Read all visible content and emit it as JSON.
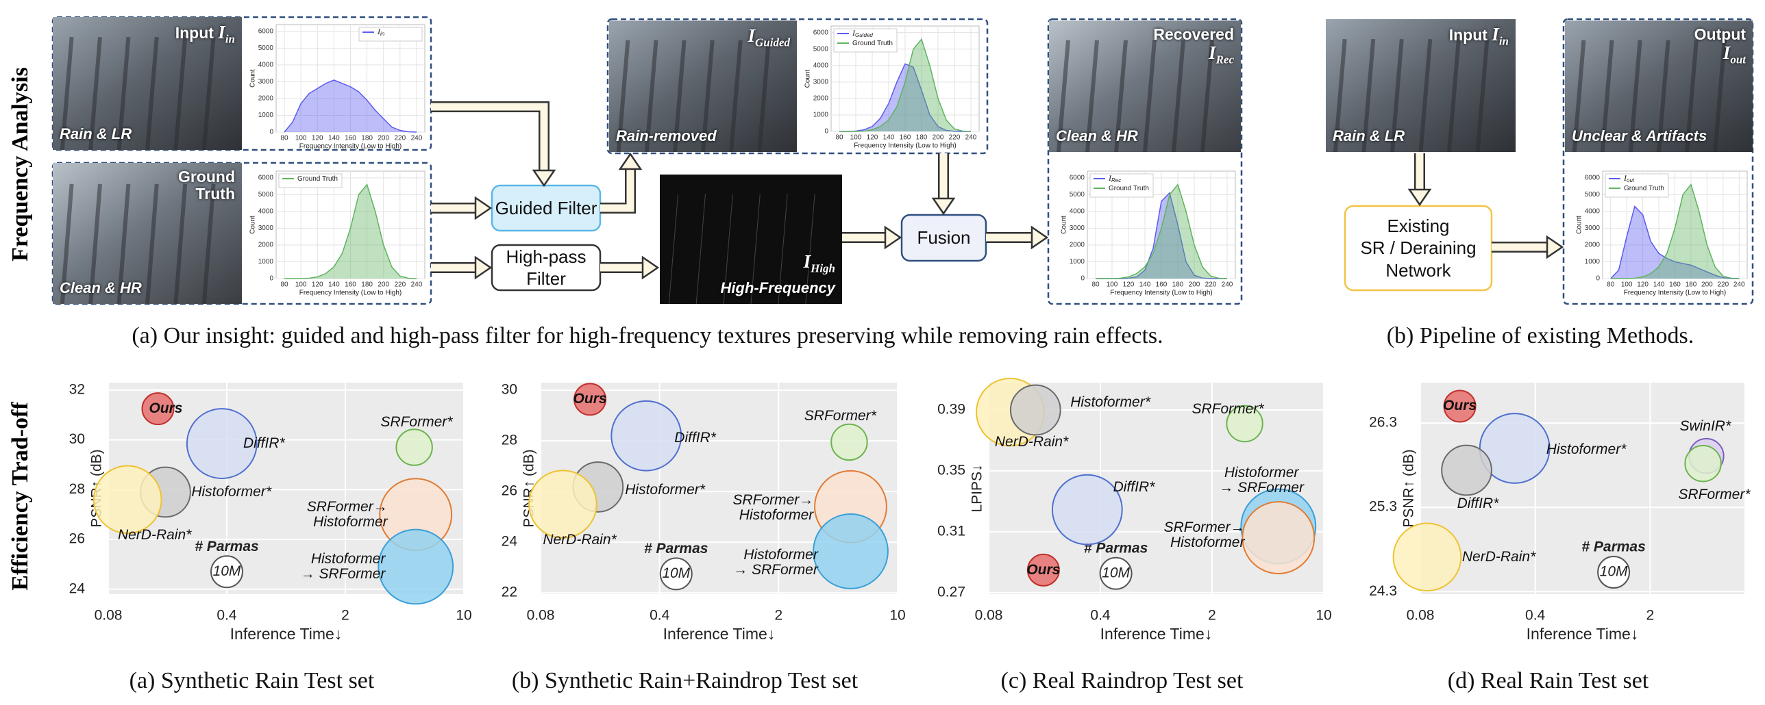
{
  "diagram": {
    "side_labels": [
      "Frequency Analysis",
      "Efficiency Trad-off"
    ],
    "photos": [
      {
        "title": "Input",
        "symbol": "I",
        "sub": "in",
        "tag": "Rain & LR"
      },
      {
        "title": "Ground\nTruth",
        "tag": "Clean & HR"
      },
      {
        "symbol": "I",
        "sub": "Guided",
        "tag": "Rain-removed"
      },
      {
        "symbol": "I",
        "sub": "High",
        "tag": "High-Frequency"
      },
      {
        "title": "Recovered",
        "symbol": "I",
        "sub": "Rec",
        "tag": "Clean & HR"
      },
      {
        "title": "Input",
        "symbol": "I",
        "sub": "in",
        "tag": "Rain & LR"
      },
      {
        "title": "Output",
        "symbol": "I",
        "sub": "out",
        "tag": "Unclear & Artifacts"
      }
    ],
    "boxes": [
      "Guided Filter",
      "High-pass\nFilter",
      "Fusion",
      "Existing\nSR / Deraining\nNetwork"
    ],
    "captions": [
      "(a) Our insight: guided and high-pass filter for high-frequency textures preserving while removing rain effects.",
      "(b) Pipeline of existing Methods."
    ]
  },
  "chart_data": [
    {
      "type": "area",
      "xlabel": "Frequency Intensity (Low to High)",
      "ylabel": "Count",
      "legend": "upper right",
      "x": [
        80,
        90,
        100,
        110,
        120,
        130,
        140,
        150,
        160,
        170,
        180,
        190,
        200,
        210,
        220,
        230,
        240
      ],
      "xlim": [
        70,
        250
      ],
      "xticks": [
        80,
        100,
        120,
        140,
        160,
        180,
        200,
        220,
        240
      ],
      "ylim": [
        0,
        6400
      ],
      "yticks": [
        0,
        1000,
        2000,
        3000,
        4000,
        5000,
        6000
      ],
      "series": [
        {
          "name": "I",
          "name_sub": "in",
          "color": "#5b5bef",
          "values": [
            0,
            600,
            1700,
            2300,
            2600,
            2900,
            3100,
            2900,
            2700,
            2400,
            1900,
            1300,
            800,
            300,
            100,
            20,
            0
          ]
        }
      ]
    },
    {
      "type": "area",
      "xlabel": "Frequency Intensity (Low to High)",
      "ylabel": "Count",
      "legend": "upper left",
      "x": [
        80,
        90,
        100,
        110,
        120,
        130,
        140,
        150,
        160,
        170,
        180,
        190,
        200,
        210,
        220,
        230,
        240
      ],
      "xlim": [
        70,
        250
      ],
      "xticks": [
        80,
        100,
        120,
        140,
        160,
        180,
        200,
        220,
        240
      ],
      "ylim": [
        0,
        6400
      ],
      "yticks": [
        0,
        1000,
        2000,
        3000,
        4000,
        5000,
        6000
      ],
      "series": [
        {
          "name": "Ground Truth",
          "color": "#5fb35f",
          "values": [
            0,
            0,
            0,
            20,
            100,
            300,
            700,
            1500,
            3000,
            5000,
            5600,
            4000,
            2000,
            700,
            150,
            20,
            0
          ]
        }
      ]
    },
    {
      "type": "area",
      "xlabel": "Frequency Intensity (Low to High)",
      "ylabel": "Count",
      "legend": "upper left",
      "x": [
        80,
        90,
        100,
        110,
        120,
        130,
        140,
        150,
        160,
        170,
        180,
        190,
        200,
        210,
        220,
        230,
        240
      ],
      "xlim": [
        70,
        250
      ],
      "xticks": [
        80,
        100,
        120,
        140,
        160,
        180,
        200,
        220,
        240
      ],
      "ylim": [
        0,
        6400
      ],
      "yticks": [
        0,
        1000,
        2000,
        3000,
        4000,
        5000,
        6000
      ],
      "series": [
        {
          "name": "I",
          "name_sub": "Guided",
          "color": "#5b5bef",
          "values": [
            0,
            0,
            20,
            100,
            300,
            800,
            1700,
            3000,
            4100,
            3900,
            2500,
            1000,
            300,
            60,
            10,
            0,
            0
          ]
        },
        {
          "name": "Ground Truth",
          "color": "#5fb35f",
          "values": [
            0,
            0,
            0,
            20,
            100,
            300,
            700,
            1500,
            3000,
            5000,
            5600,
            4000,
            2000,
            700,
            150,
            20,
            0
          ]
        }
      ]
    },
    {
      "type": "area",
      "xlabel": "Frequency Intensity (Low to High)",
      "ylabel": "Count",
      "legend": "upper left",
      "x": [
        80,
        90,
        100,
        110,
        120,
        130,
        140,
        150,
        160,
        170,
        180,
        190,
        200,
        210,
        220,
        230,
        240
      ],
      "xlim": [
        70,
        250
      ],
      "xticks": [
        80,
        100,
        120,
        140,
        160,
        180,
        200,
        220,
        240
      ],
      "ylim": [
        0,
        6400
      ],
      "yticks": [
        0,
        1000,
        2000,
        3000,
        4000,
        5000,
        6000
      ],
      "series": [
        {
          "name": "I",
          "name_sub": "Rec",
          "color": "#5b5bef",
          "values": [
            0,
            0,
            0,
            0,
            20,
            100,
            500,
            1800,
            4600,
            5100,
            3200,
            1000,
            200,
            30,
            0,
            0,
            0
          ]
        },
        {
          "name": "Ground Truth",
          "color": "#5fb35f",
          "values": [
            0,
            0,
            0,
            20,
            100,
            300,
            700,
            1500,
            3000,
            5000,
            5600,
            4000,
            2000,
            700,
            150,
            20,
            0
          ]
        }
      ]
    },
    {
      "type": "area",
      "xlabel": "Frequency Intensity (Low to High)",
      "ylabel": "Count",
      "legend": "upper left",
      "x": [
        80,
        90,
        100,
        110,
        120,
        130,
        140,
        150,
        160,
        170,
        180,
        190,
        200,
        210,
        220,
        230,
        240
      ],
      "xlim": [
        70,
        250
      ],
      "xticks": [
        80,
        100,
        120,
        140,
        160,
        180,
        200,
        220,
        240
      ],
      "ylim": [
        0,
        6400
      ],
      "yticks": [
        0,
        1000,
        2000,
        3000,
        4000,
        5000,
        6000
      ],
      "series": [
        {
          "name": "I",
          "name_sub": "out",
          "color": "#5b5bef",
          "values": [
            0,
            500,
            2500,
            4300,
            3800,
            2200,
            1500,
            1200,
            1000,
            900,
            800,
            600,
            400,
            200,
            50,
            0,
            0
          ]
        },
        {
          "name": "Ground Truth",
          "color": "#5fb35f",
          "values": [
            0,
            0,
            0,
            20,
            100,
            300,
            700,
            1500,
            3000,
            5000,
            5600,
            4000,
            2000,
            700,
            150,
            20,
            0
          ]
        }
      ]
    },
    {
      "type": "bubble",
      "title": "(a) Synthetic Rain Test set",
      "xlabel": "Inference Time↓",
      "ylabel": "PSNR↑ (dB)",
      "xscale": "log",
      "grid": true,
      "xlim": [
        0.08,
        10
      ],
      "xticks": [
        0.08,
        0.4,
        2,
        10
      ],
      "ylim": [
        23.8,
        32.3
      ],
      "yticks": [
        24,
        26,
        28,
        30,
        32
      ],
      "size_legend": {
        "title": "# Parmas",
        "label": "10M",
        "x": 0.4,
        "y": 24.7,
        "size": 10
      },
      "series": [
        {
          "name": "Ours",
          "color": "#e8706e",
          "edge_color": "#c0302c",
          "x": [
            0.157
          ],
          "values": [
            31.25
          ],
          "sizes": [
            10
          ]
        },
        {
          "name": "DiffIR*",
          "color": "#d5def3",
          "edge_color": "#4f6fcf",
          "x": [
            0.374
          ],
          "values": [
            29.85
          ],
          "sizes": [
            49
          ]
        },
        {
          "name": "Histoformer*",
          "color": "#cfcfcf",
          "edge_color": "#6a6a6a",
          "x": [
            0.174
          ],
          "values": [
            27.9
          ],
          "sizes": [
            25
          ]
        },
        {
          "name": "NerD-Rain*",
          "color": "#fdf1bd",
          "edge_color": "#efc233",
          "x": [
            0.104
          ],
          "values": [
            27.6
          ],
          "sizes": [
            46
          ]
        },
        {
          "name": "SRFormer*",
          "color": "#def1cc",
          "edge_color": "#6db34f",
          "x": [
            5.1
          ],
          "values": [
            29.7
          ],
          "sizes": [
            13
          ]
        },
        {
          "name": "SRFormer→\nHistoformer",
          "color": "#fbe2d0",
          "edge_color": "#e07b33",
          "x": [
            5.2
          ],
          "values": [
            27.0
          ],
          "sizes": [
            52
          ]
        },
        {
          "name": "Histoformer\n→ SRFormer",
          "color": "#93d2f0",
          "edge_color": "#3a9fd8",
          "x": [
            5.2
          ],
          "values": [
            24.9
          ],
          "sizes": [
            56
          ]
        }
      ]
    },
    {
      "type": "bubble",
      "title": "(b) Synthetic Rain+Raindrop Test set",
      "xlabel": "Inference Time↓",
      "ylabel": "PSNR↑ (dB)",
      "xscale": "log",
      "grid": true,
      "xlim": [
        0.08,
        10
      ],
      "xticks": [
        0.08,
        0.4,
        2,
        10
      ],
      "ylim": [
        21.95,
        30.3
      ],
      "yticks": [
        22,
        24,
        26,
        28,
        30
      ],
      "size_legend": {
        "title": "# Parmas",
        "label": "10M",
        "x": 0.5,
        "y": 22.75,
        "size": 10
      },
      "series": [
        {
          "name": "Ours",
          "color": "#e8706e",
          "edge_color": "#c0302c",
          "x": [
            0.156
          ],
          "values": [
            29.64
          ],
          "sizes": [
            10
          ]
        },
        {
          "name": "DiffIR*",
          "color": "#d5def3",
          "edge_color": "#4f6fcf",
          "x": [
            0.334
          ],
          "values": [
            28.2
          ],
          "sizes": [
            49
          ]
        },
        {
          "name": "Histoformer*",
          "color": "#cfcfcf",
          "edge_color": "#6a6a6a",
          "x": [
            0.174
          ],
          "values": [
            26.18
          ],
          "sizes": [
            25
          ]
        },
        {
          "name": "NerD-Rain*",
          "color": "#fdf1bd",
          "edge_color": "#efc233",
          "x": [
            0.108
          ],
          "values": [
            25.5
          ],
          "sizes": [
            46
          ]
        },
        {
          "name": "SRFormer*",
          "color": "#def1cc",
          "edge_color": "#6db34f",
          "x": [
            5.2
          ],
          "values": [
            27.95
          ],
          "sizes": [
            13
          ]
        },
        {
          "name": "SRFormer→\nHistoformer",
          "color": "#fbe2d0",
          "edge_color": "#e07b33",
          "x": [
            5.3
          ],
          "values": [
            25.4
          ],
          "sizes": [
            52
          ]
        },
        {
          "name": "Histoformer\n→ SRFormer",
          "color": "#93d2f0",
          "edge_color": "#3a9fd8",
          "x": [
            5.3
          ],
          "values": [
            23.64
          ],
          "sizes": [
            56
          ]
        }
      ]
    },
    {
      "type": "bubble",
      "title": "(c) Real Raindrop Test set",
      "xlabel": "Inference Time↓",
      "ylabel": "LPIPS↓",
      "xscale": "log",
      "grid": true,
      "xlim": [
        0.08,
        10
      ],
      "xticks": [
        0.08,
        0.4,
        2,
        10
      ],
      "ylim": [
        0.269,
        0.408
      ],
      "yticks": [
        0.27,
        0.31,
        0.35,
        0.39
      ],
      "size_legend": {
        "title": "# Parmas",
        "label": "10M",
        "x": 0.5,
        "y": 0.2826,
        "size": 10
      },
      "series": [
        {
          "name": "NerD-Rain*",
          "color": "#fdf1bd",
          "edge_color": "#efc233",
          "x": [
            0.109
          ],
          "values": [
            0.3886
          ],
          "sizes": [
            46
          ]
        },
        {
          "name": "Histoformer*",
          "color": "#cfcfcf",
          "edge_color": "#6a6a6a",
          "x": [
            0.157
          ],
          "values": [
            0.39
          ],
          "sizes": [
            25
          ]
        },
        {
          "name": "SRFormer*",
          "color": "#def1cc",
          "edge_color": "#6db34f",
          "x": [
            3.2
          ],
          "values": [
            0.381
          ],
          "sizes": [
            13
          ]
        },
        {
          "name": "DiffIR*",
          "color": "#d5def3",
          "edge_color": "#4f6fcf",
          "x": [
            0.331
          ],
          "values": [
            0.3245
          ],
          "sizes": [
            49
          ]
        },
        {
          "name": "Histoformer\n→ SRFormer",
          "color": "#93d2f0",
          "edge_color": "#3a9fd8",
          "x": [
            5.2
          ],
          "values": [
            0.3135
          ],
          "sizes": [
            56
          ]
        },
        {
          "name": "SRFormer→\nHistoformer",
          "color": "#fbe2d0",
          "edge_color": "#e07b33",
          "x": [
            5.2
          ],
          "values": [
            0.3061
          ],
          "sizes": [
            52
          ]
        },
        {
          "name": "Ours",
          "color": "#e8706e",
          "edge_color": "#c0302c",
          "x": [
            0.176
          ],
          "values": [
            0.2848
          ],
          "sizes": [
            10
          ]
        }
      ]
    },
    {
      "type": "bubble",
      "title": "(d) Real Rain Test set",
      "xlabel": "Inference Time↓",
      "ylabel": "PSNR↑ (dB)",
      "xscale": "log",
      "grid": true,
      "xlim": [
        0.08,
        7.5
      ],
      "xticks": [
        0.08,
        0.4,
        2
      ],
      "ylim": [
        24.27,
        26.78
      ],
      "yticks": [
        24.3,
        25.3,
        26.3
      ],
      "size_legend": {
        "title": "# Parmas",
        "label": "10M",
        "x": 1.2,
        "y": 24.53,
        "size": 10
      },
      "series": [
        {
          "name": "Ours",
          "color": "#e8706e",
          "edge_color": "#c0302c",
          "x": [
            0.139
          ],
          "values": [
            26.5
          ],
          "sizes": [
            10
          ]
        },
        {
          "name": "Histoformer*",
          "color": "#d5def3",
          "edge_color": "#4f6fcf",
          "x": [
            0.3
          ],
          "values": [
            26.0
          ],
          "sizes": [
            49
          ]
        },
        {
          "name": "DiffIR*",
          "color": "#cfcfcf",
          "edge_color": "#6a6a6a",
          "x": [
            0.153
          ],
          "values": [
            25.74
          ],
          "sizes": [
            25
          ]
        },
        {
          "name": "NerD-Rain*",
          "color": "#fdf1bd",
          "edge_color": "#efc233",
          "x": [
            0.088
          ],
          "values": [
            24.71
          ],
          "sizes": [
            46
          ]
        },
        {
          "name": "SwinIR*",
          "color": "#ddd0f0",
          "edge_color": "#7d5bbf",
          "x": [
            4.4
          ],
          "values": [
            25.91
          ],
          "sizes": [
            12
          ]
        },
        {
          "name": "SRFormer*",
          "color": "#def1cc",
          "edge_color": "#6db34f",
          "x": [
            4.2
          ],
          "values": [
            25.82
          ],
          "sizes": [
            13
          ]
        }
      ]
    }
  ]
}
